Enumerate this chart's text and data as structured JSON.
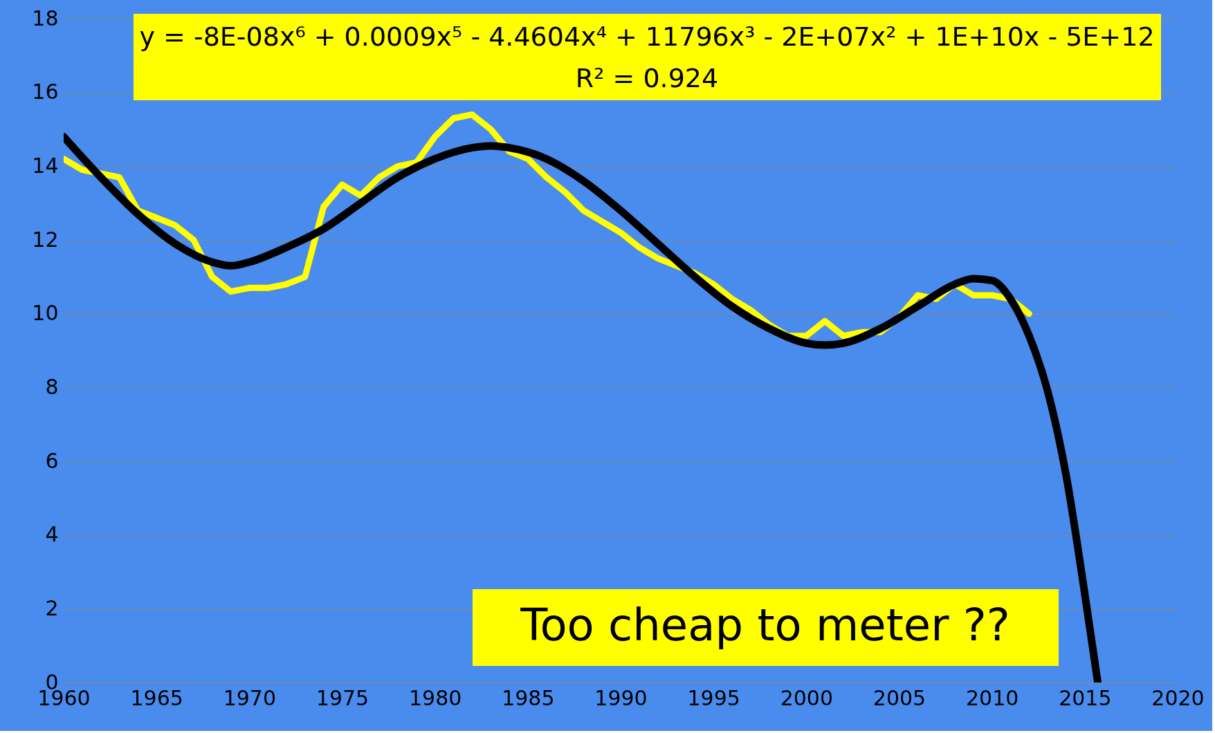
{
  "chart_data": {
    "type": "line",
    "series": [
      {
        "color": "#ffff00",
        "x": [
          1960,
          1961,
          1962,
          1963,
          1964,
          1965,
          1966,
          1967,
          1968,
          1969,
          1970,
          1971,
          1972,
          1973,
          1974,
          1975,
          1976,
          1977,
          1978,
          1979,
          1980,
          1981,
          1982,
          1983,
          1984,
          1985,
          1986,
          1987,
          1988,
          1989,
          1990,
          1991,
          1992,
          1993,
          1994,
          1995,
          1996,
          1997,
          1998,
          1999,
          2000,
          2001,
          2002,
          2003,
          2004,
          2005,
          2006,
          2007,
          2008,
          2009,
          2010,
          2011,
          2012
        ],
        "values": [
          14.2,
          13.9,
          13.8,
          13.7,
          12.8,
          12.6,
          12.4,
          12.0,
          11.0,
          10.6,
          10.7,
          10.7,
          10.8,
          11.0,
          12.9,
          13.5,
          13.2,
          13.7,
          14.0,
          14.1,
          14.8,
          15.3,
          15.4,
          15.0,
          14.4,
          14.2,
          13.7,
          13.3,
          12.8,
          12.5,
          12.2,
          11.8,
          11.5,
          11.3,
          11.1,
          10.8,
          10.4,
          10.1,
          9.7,
          9.4,
          9.4,
          9.8,
          9.4,
          9.5,
          9.5,
          9.9,
          10.5,
          10.4,
          10.8,
          10.5,
          10.5,
          10.4,
          10.0
        ]
      },
      {
        "color": "#000000",
        "x": [
          1960,
          1962,
          1964,
          1966,
          1968,
          1969,
          1970,
          1972,
          1974,
          1976,
          1978,
          1980,
          1982,
          1983,
          1984,
          1986,
          1988,
          1990,
          1992,
          1994,
          1996,
          1998,
          2000,
          2001,
          2002,
          2004,
          2006,
          2008,
          2009,
          2010,
          2011,
          2012,
          2013,
          2014,
          2015,
          2015.7
        ],
        "values": [
          14.8,
          13.7,
          12.7,
          11.9,
          11.4,
          11.3,
          11.4,
          11.8,
          12.3,
          13.0,
          13.7,
          14.2,
          14.5,
          14.55,
          14.5,
          14.2,
          13.6,
          12.8,
          11.9,
          11.0,
          10.2,
          9.6,
          9.2,
          9.15,
          9.2,
          9.6,
          10.2,
          10.8,
          10.95,
          10.9,
          10.4,
          9.4,
          7.9,
          5.6,
          2.4,
          0
        ]
      }
    ],
    "xlim": [
      1960,
      2020
    ],
    "xticks": [
      1960,
      1965,
      1970,
      1975,
      1980,
      1985,
      1990,
      1995,
      2000,
      2005,
      2010,
      2015,
      2020
    ],
    "ylim": [
      0,
      18
    ],
    "yticks": [
      0,
      2,
      4,
      6,
      8,
      10,
      12,
      14,
      16,
      18
    ],
    "grid": "y",
    "marker": "none",
    "line_style": "solid",
    "annotations": [
      "y = -8E-08x⁶ + 0.0009x⁵ - 4.4604x⁴ + 11796x³ - 2E+07x² + 1E+10x - 5E+12",
      "R² = 0.924",
      "Too cheap to meter ??"
    ]
  }
}
